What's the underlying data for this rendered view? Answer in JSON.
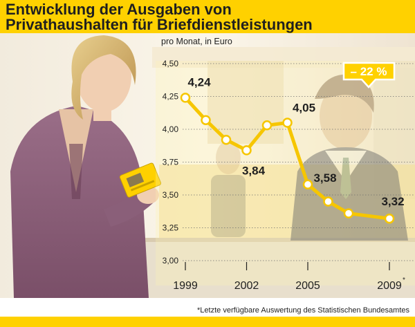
{
  "title_lines": [
    "Entwicklung der Ausgaben von",
    "Privathaushalten für Briefdienstleistungen"
  ],
  "footnote": "*Letzte verfügbare Auswertung des Statistischen Bundesamtes",
  "colors": {
    "accent": "#ffd100",
    "line": "#f6c600",
    "point_fill": "#ffffff",
    "text": "#1f1f1f"
  },
  "chart_data": {
    "type": "line",
    "title": "",
    "unit_label": "pro Monat, in Euro",
    "x": [
      1999,
      2000,
      2001,
      2002,
      2003,
      2004,
      2005,
      2006,
      2007,
      2009
    ],
    "values": [
      4.24,
      4.07,
      3.92,
      3.84,
      4.03,
      4.05,
      3.58,
      3.45,
      3.36,
      3.32
    ],
    "value_labels": [
      {
        "x": 1999,
        "text": "4,24"
      },
      {
        "x": 2002,
        "text": "3,84"
      },
      {
        "x": 2004,
        "text": "4,05"
      },
      {
        "x": 2005,
        "text": "3,58"
      },
      {
        "x": 2009,
        "text": "3,32"
      }
    ],
    "y_ticks": [
      "3,00",
      "3,25",
      "3,50",
      "3,75",
      "4,00",
      "4,25",
      "4,50"
    ],
    "y_tick_values": [
      3.0,
      3.25,
      3.5,
      3.75,
      4.0,
      4.25,
      4.5
    ],
    "x_ticks": [
      {
        "x": 1999,
        "label": "1999"
      },
      {
        "x": 2002,
        "label": "2002"
      },
      {
        "x": 2005,
        "label": "2005"
      },
      {
        "x": 2009,
        "label": "2009",
        "marker": "*"
      }
    ],
    "ylim": [
      3.0,
      4.5
    ],
    "xlim": [
      1999,
      2009
    ],
    "callout": "– 22 %",
    "grid": true
  }
}
